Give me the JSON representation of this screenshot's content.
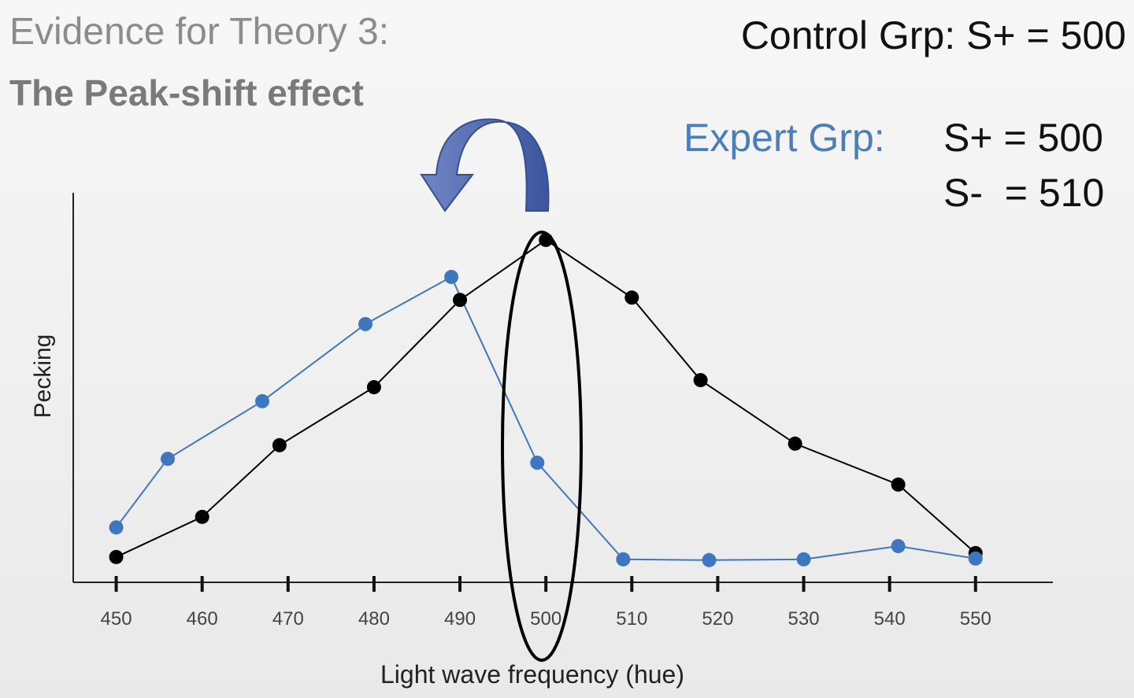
{
  "chart_data": {
    "type": "line",
    "title": "Evidence for Theory 3:",
    "subtitle": "The Peak-shift effect",
    "annotations": [
      "Control Grp: S+ = 500",
      "Expert Grp:",
      "S+ = 500",
      "S-  = 510"
    ],
    "x_label": "Light wave frequency (hue)",
    "y_label": "Pecking",
    "xlim": [
      445,
      559
    ],
    "xticks": [
      450,
      460,
      470,
      480,
      490,
      500,
      510,
      520,
      530,
      540,
      550
    ],
    "ylim": [
      0,
      100
    ],
    "series": [
      {
        "color": "#000000",
        "x": [
          450,
          460,
          469,
          480,
          490,
          500,
          510,
          518,
          529,
          541,
          550
        ],
        "values": [
          6.5,
          16.8,
          35.2,
          50.1,
          72.5,
          87.9,
          73.1,
          51.9,
          35.6,
          25.1,
          7.5
        ]
      },
      {
        "color": "#3f77bf",
        "x": [
          450,
          456,
          467,
          479,
          489,
          499,
          509,
          519,
          530,
          541,
          550
        ],
        "values": [
          14.1,
          31.7,
          46.5,
          66.3,
          78.4,
          30.7,
          5.9,
          5.7,
          5.9,
          9.3,
          6.1
        ]
      }
    ]
  }
}
